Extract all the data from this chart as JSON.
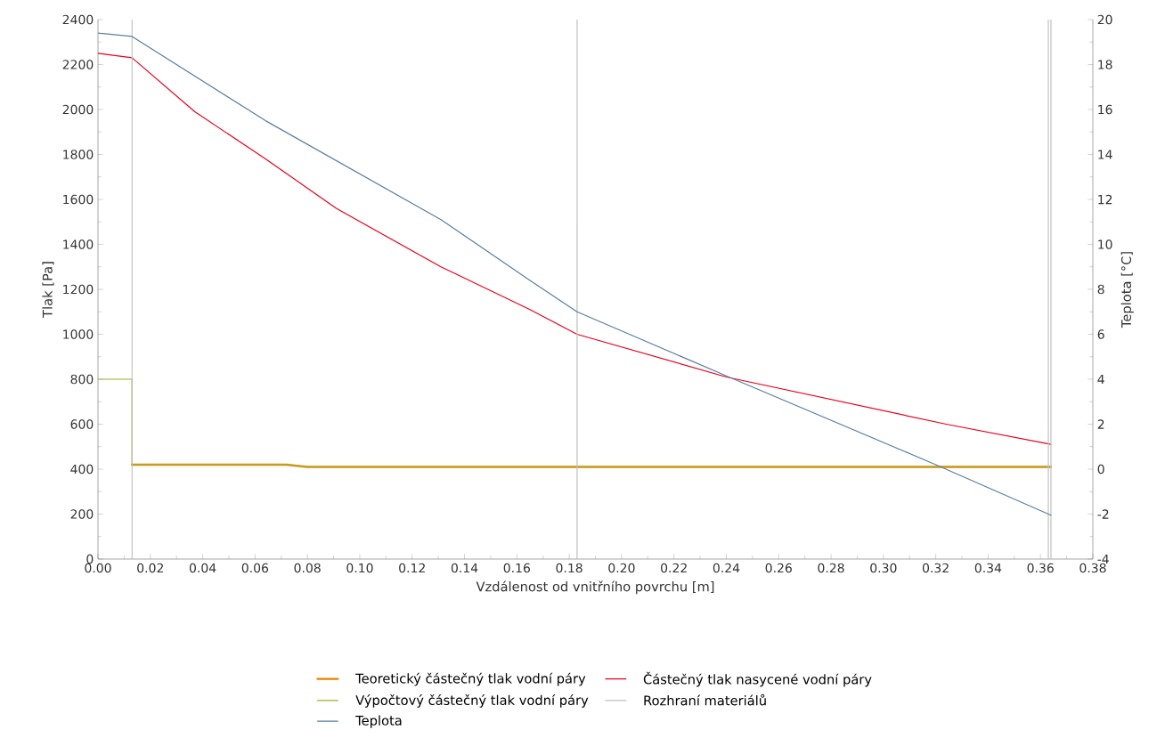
{
  "chart_data": {
    "type": "line",
    "xlabel": "Vzdálenost od vnitřního povrchu [m]",
    "ylabel": "Tlak [Pa]",
    "y2label": "Teplota [°C]",
    "xlim": [
      0,
      0.38
    ],
    "ylim": [
      0,
      2400
    ],
    "y2lim": [
      -4,
      20
    ],
    "xticks": [
      {
        "value": 0,
        "label": "0.00"
      },
      {
        "value": 0.02,
        "label": "0.02"
      },
      {
        "value": 0.04,
        "label": "0.04"
      },
      {
        "value": 0.06,
        "label": "0.06"
      },
      {
        "value": 0.08,
        "label": "0.08"
      },
      {
        "value": 0.1,
        "label": "0.10"
      },
      {
        "value": 0.12,
        "label": "0.12"
      },
      {
        "value": 0.14,
        "label": "0.14"
      },
      {
        "value": 0.16,
        "label": "0.16"
      },
      {
        "value": 0.18,
        "label": "0.18"
      },
      {
        "value": 0.2,
        "label": "0.20"
      },
      {
        "value": 0.22,
        "label": "0.22"
      },
      {
        "value": 0.24,
        "label": "0.24"
      },
      {
        "value": 0.26,
        "label": "0.26"
      },
      {
        "value": 0.28,
        "label": "0.28"
      },
      {
        "value": 0.3,
        "label": "0.30"
      },
      {
        "value": 0.32,
        "label": "0.32"
      },
      {
        "value": 0.34,
        "label": "0.34"
      },
      {
        "value": 0.36,
        "label": "0.36"
      },
      {
        "value": 0.38,
        "label": "0.38"
      }
    ],
    "yticks": [
      0,
      200,
      400,
      600,
      800,
      1000,
      1200,
      1400,
      1600,
      1800,
      2000,
      2200,
      2400
    ],
    "y2ticks": [
      -4,
      -2,
      0,
      2,
      4,
      6,
      8,
      10,
      12,
      14,
      16,
      18,
      20
    ],
    "grid": false,
    "legend": "bottom",
    "marker": "none",
    "series": [
      {
        "name": "Teoretický částečný tlak vodní páry",
        "color": "#f08000",
        "x": [
          0.013,
          0.072,
          0.08,
          0.364
        ],
        "values": [
          420,
          420,
          410,
          410
        ]
      },
      {
        "name": "Částečný tlak nasycené vodní páry",
        "color": "#e8001c",
        "x": [
          0,
          0.013,
          0.037,
          0.064,
          0.091,
          0.131,
          0.165,
          0.183,
          0.24,
          0.324,
          0.364
        ],
        "values": [
          2250,
          2230,
          1990,
          1780,
          1560,
          1300,
          1110,
          1000,
          810,
          600,
          510
        ]
      },
      {
        "name": "Výpočtový částečný tlak vodní páry",
        "color": "#a0b030",
        "x": [
          0,
          0.013,
          0.013,
          0.072,
          0.08,
          0.364
        ],
        "values": [
          800,
          800,
          420,
          420,
          410,
          410
        ]
      },
      {
        "name": "Rozhraní materiálů",
        "color": "#c0c0c0",
        "x": [
          0.013,
          0.013,
          null,
          0.183,
          0.183,
          null,
          0.363,
          0.363,
          null,
          0.364,
          0.364
        ],
        "values": [
          0,
          2400,
          null,
          2400,
          0,
          null,
          0,
          2400,
          null,
          2400,
          0
        ]
      },
      {
        "name": "Teplota",
        "color": "#5a7fa0",
        "axis": "y2",
        "x": [
          0,
          0.013,
          0.064,
          0.131,
          0.165,
          0.183,
          0.24,
          0.32,
          0.364
        ],
        "values": [
          19.4,
          19.25,
          15.5,
          11.1,
          8.4,
          7.0,
          4.15,
          0.2,
          -2.05
        ]
      }
    ]
  }
}
